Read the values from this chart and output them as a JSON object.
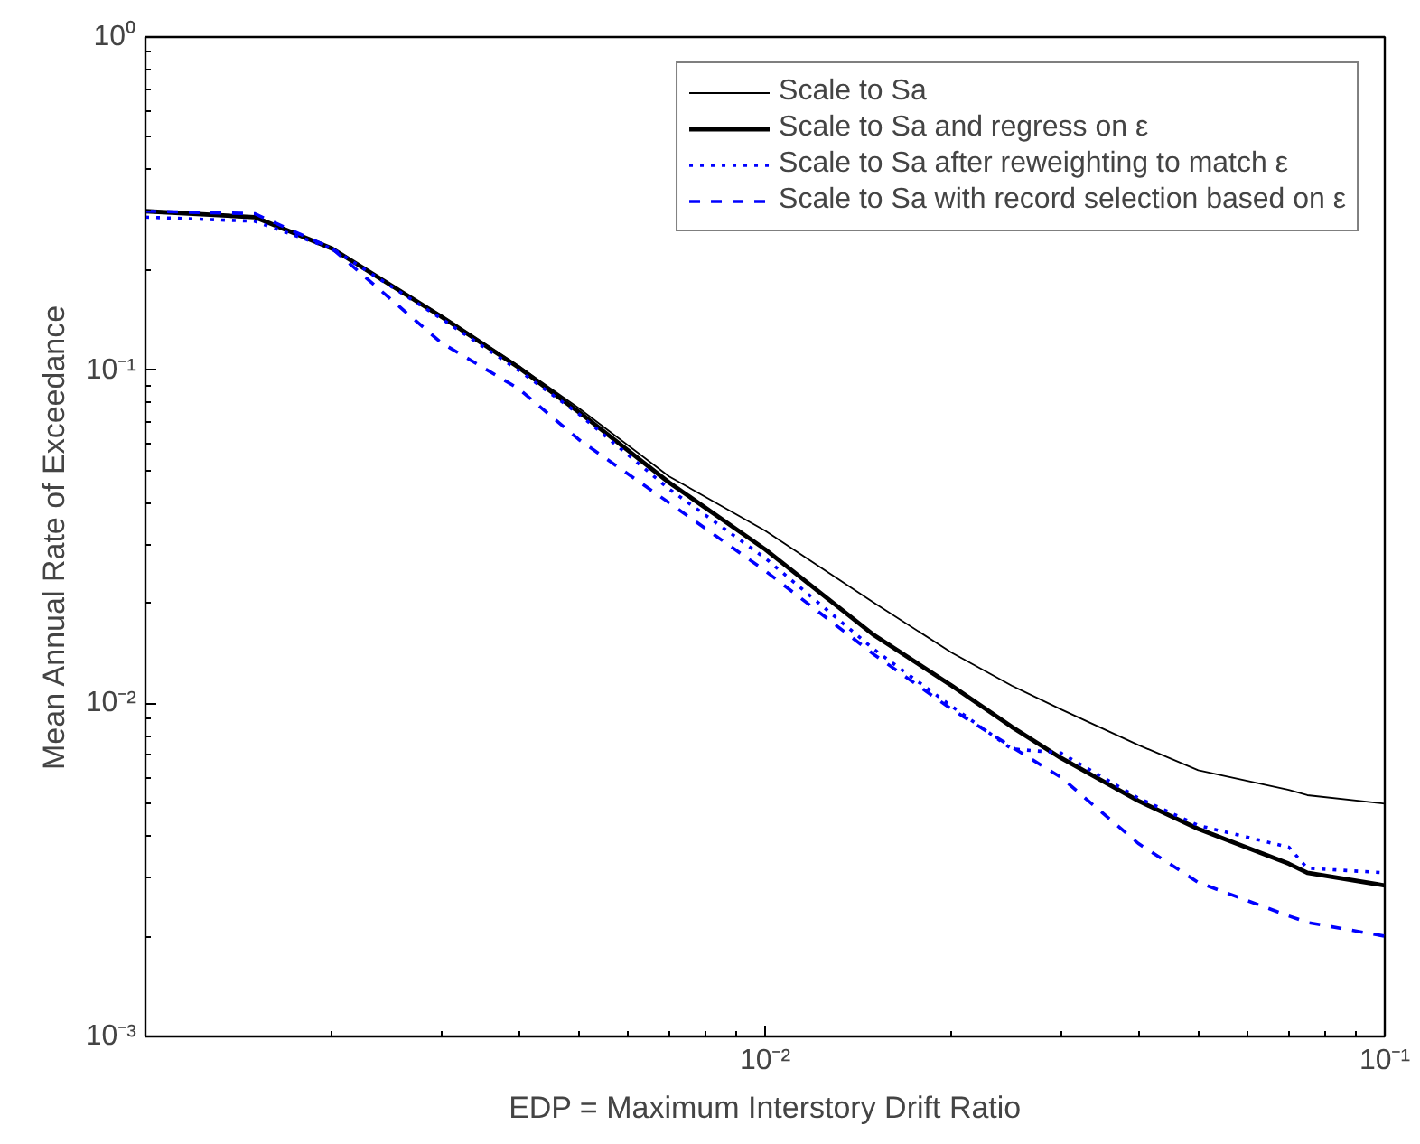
{
  "chart_data": {
    "type": "line",
    "xlabel": "EDP = Maximum Interstory Drift Ratio",
    "ylabel": "Mean Annual Rate of Exceedance",
    "log": "xy",
    "grid": false,
    "legend": "top right",
    "marker": "none",
    "x": [
      0.001,
      0.0015,
      0.002,
      0.003,
      0.004,
      0.005,
      0.007,
      0.01,
      0.015,
      0.02,
      0.025,
      0.03,
      0.04,
      0.05,
      0.07,
      0.075,
      0.1
    ],
    "xlim": [
      0.001,
      0.1
    ],
    "ylim": [
      0.001,
      1
    ],
    "xticks": [
      {
        "value": 0.01,
        "label": "10⁻²"
      },
      {
        "value": 0.1,
        "label": "10⁻¹"
      }
    ],
    "yticks": [
      {
        "value": 0.001,
        "label": "10⁻³"
      },
      {
        "value": 0.01,
        "label": "10⁻²"
      },
      {
        "value": 0.1,
        "label": "10⁻¹"
      },
      {
        "value": 1,
        "label": "10⁰"
      }
    ],
    "series": [
      {
        "name": "Scale to Sa",
        "color": "#000000",
        "line_style": "solid",
        "values": [
          0.3,
          0.288,
          0.232,
          0.146,
          0.103,
          0.077,
          0.048,
          0.033,
          0.02,
          0.0142,
          0.0113,
          0.0096,
          0.0075,
          0.0063,
          0.0055,
          0.0053,
          0.005
        ]
      },
      {
        "name": "Scale to Sa and regress on ε",
        "color": "#000000",
        "line_style": "solid",
        "values": [
          0.3,
          0.288,
          0.232,
          0.145,
          0.102,
          0.075,
          0.046,
          0.029,
          0.016,
          0.0113,
          0.0085,
          0.00686,
          0.0051,
          0.0042,
          0.0033,
          0.0031,
          0.00284
        ]
      },
      {
        "name": "Scale to Sa after reweighting to match ε",
        "color": "#0000ff",
        "line_style": "dotted",
        "values": [
          0.288,
          0.28,
          0.232,
          0.143,
          0.1,
          0.074,
          0.044,
          0.0273,
          0.0145,
          0.0098,
          0.0073,
          0.0071,
          0.0052,
          0.0043,
          0.0037,
          0.0032,
          0.0031
        ]
      },
      {
        "name": "Scale to Sa with record selection based on ε",
        "color": "#0000ff",
        "line_style": "dashed",
        "values": [
          0.3,
          0.295,
          0.232,
          0.121,
          0.088,
          0.062,
          0.04,
          0.025,
          0.014,
          0.0096,
          0.0074,
          0.006,
          0.0038,
          0.0029,
          0.0023,
          0.0022,
          0.002
        ]
      }
    ]
  }
}
